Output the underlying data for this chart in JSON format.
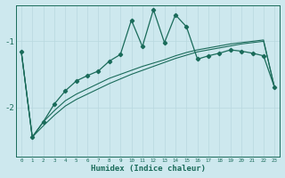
{
  "x": [
    0,
    1,
    2,
    3,
    4,
    5,
    6,
    7,
    8,
    9,
    10,
    11,
    12,
    13,
    14,
    15,
    16,
    17,
    18,
    19,
    20,
    21,
    22,
    23
  ],
  "y_zigzag": [
    -1.15,
    -2.45,
    -2.22,
    -1.95,
    -1.75,
    -1.6,
    -1.52,
    -1.45,
    -1.3,
    -1.2,
    -0.68,
    -1.08,
    -0.52,
    -1.02,
    -0.6,
    -0.78,
    -1.27,
    -1.22,
    -1.18,
    -1.13,
    -1.15,
    -1.18,
    -1.22,
    -1.7
  ],
  "y_trend_upper": [
    -1.15,
    -2.45,
    -2.22,
    -2.05,
    -1.9,
    -1.8,
    -1.72,
    -1.64,
    -1.56,
    -1.5,
    -1.44,
    -1.38,
    -1.33,
    -1.28,
    -1.22,
    -1.17,
    -1.13,
    -1.1,
    -1.07,
    -1.04,
    -1.02,
    -1.0,
    -0.98,
    -1.7
  ],
  "y_trend_lower": [
    -1.15,
    -2.45,
    -2.28,
    -2.12,
    -1.98,
    -1.88,
    -1.8,
    -1.72,
    -1.64,
    -1.57,
    -1.5,
    -1.44,
    -1.38,
    -1.32,
    -1.26,
    -1.21,
    -1.16,
    -1.13,
    -1.1,
    -1.07,
    -1.04,
    -1.02,
    -1.0,
    -1.7
  ],
  "bg_color": "#cde8ee",
  "line_color": "#1a6b5a",
  "grid_color": "#b8d8df",
  "xlabel": "Humidex (Indice chaleur)",
  "ytick_vals": [
    -2,
    -1
  ],
  "ytick_labels": [
    "-2",
    "-1"
  ],
  "ylim": [
    -2.75,
    -0.45
  ],
  "xlim": [
    -0.5,
    23.5
  ]
}
